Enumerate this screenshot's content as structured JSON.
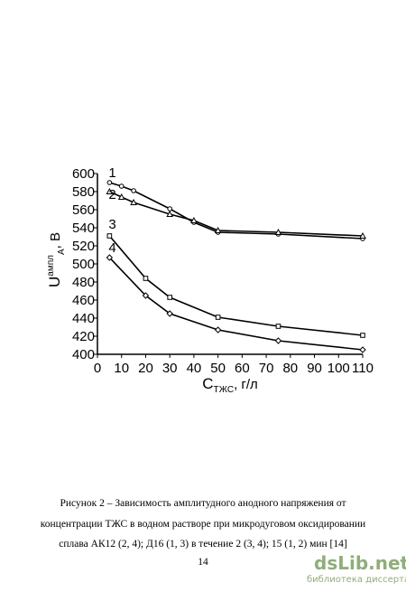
{
  "chart_data": {
    "type": "line",
    "xlabel": {
      "main": "C",
      "sub": "ТЖС",
      "suffix": ", г/л"
    },
    "ylabel": {
      "main": "U",
      "sup": "ампл",
      "sub": "А",
      "suffix": ", В"
    },
    "xlim": [
      0,
      110
    ],
    "xticks": [
      0,
      10,
      20,
      30,
      40,
      50,
      60,
      70,
      80,
      90,
      100,
      110
    ],
    "ylim": [
      400,
      600
    ],
    "yticks": [
      400,
      420,
      440,
      460,
      480,
      500,
      520,
      540,
      560,
      580,
      600
    ],
    "color": "#000000",
    "series": [
      {
        "name": "1",
        "marker": "circle",
        "x": [
          5,
          10,
          15,
          30,
          40,
          50,
          75,
          110
        ],
        "values": [
          590,
          586,
          581,
          561,
          546,
          535,
          533,
          528
        ]
      },
      {
        "name": "2",
        "marker": "triangle",
        "x": [
          5,
          10,
          15,
          30,
          40,
          50,
          75,
          110
        ],
        "values": [
          580,
          574,
          568,
          555,
          548,
          537,
          535,
          531
        ]
      },
      {
        "name": "3",
        "marker": "square",
        "x": [
          5,
          20,
          30,
          50,
          75,
          110
        ],
        "values": [
          531,
          484,
          463,
          441,
          431,
          421
        ]
      },
      {
        "name": "4",
        "marker": "diamond",
        "x": [
          5,
          20,
          30,
          50,
          75,
          110
        ],
        "values": [
          507,
          465,
          445,
          427,
          415,
          405
        ]
      }
    ]
  },
  "caption": [
    "Рисунок 2 – Зависимость амплитудного анодного напряжения от",
    "концентрации ТЖС в водном растворе при микродуговом оксидировании",
    "сплава АК12 (2, 4); Д16 (1, 3) в течение 2 (3, 4); 15 (1, 2) мин [14]"
  ],
  "page_number": "14",
  "watermark": {
    "logo": "dsLib.net",
    "subtitle": "библиотека диссертаций"
  }
}
